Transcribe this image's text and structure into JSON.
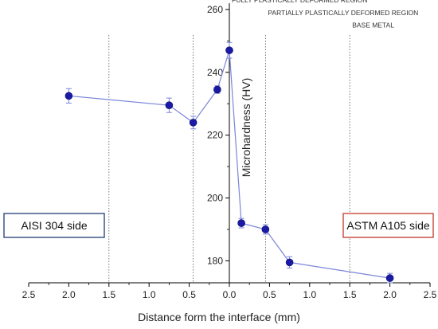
{
  "chart_data": {
    "type": "scatter",
    "xlabel": "Distance form the interface (mm)",
    "ylabel": "Microhardness (HV)",
    "x_ticks": [
      "2.5",
      "2.0",
      "1.5",
      "1.0",
      "0.5",
      "0.0",
      "0.5",
      "1.0",
      "1.5",
      "2.0",
      "2.5"
    ],
    "y_ticks": [
      "180",
      "200",
      "220",
      "240",
      "260"
    ],
    "xlim": [
      -2.5,
      2.5
    ],
    "ylim": [
      173,
      262
    ],
    "x_direction_note": "negative = AISI 304 side, positive = ASTM A105 side",
    "series": [
      {
        "color": "#1a1aa6",
        "line_color": "#7a86d8",
        "points": [
          {
            "x": -2.0,
            "y": 232.5,
            "err": 2.3
          },
          {
            "x": -0.75,
            "y": 229.5,
            "err": 2.3
          },
          {
            "x": -0.45,
            "y": 224.0,
            "err": 2.0
          },
          {
            "x": -0.15,
            "y": 234.5,
            "err": 1.2
          },
          {
            "x": 0.0,
            "y": 247.0,
            "err": 2.5
          },
          {
            "x": 0.15,
            "y": 192.0,
            "err": 1.5
          },
          {
            "x": 0.45,
            "y": 190.0,
            "err": 1.5
          },
          {
            "x": 0.75,
            "y": 179.5,
            "err": 1.8
          },
          {
            "x": 2.0,
            "y": 174.5,
            "err": 1.5
          }
        ]
      }
    ],
    "region_lines_x": [
      -1.5,
      -0.45,
      0.45,
      1.5
    ],
    "region_labels": [
      {
        "text": "FULLY PLASTICALLY DEFORMED REGION",
        "x": 0.0,
        "y": 263
      },
      {
        "text": "PARTIALLY PLASTICALLY DEFORMED REGION",
        "x": 0.45,
        "y": 259
      },
      {
        "text": "BASE METAL",
        "x": 1.5,
        "y": 255
      }
    ],
    "side_boxes": [
      {
        "text": "AISI 304 side",
        "border_color": "#1f3b73"
      },
      {
        "text": "ASTM A105 side",
        "border_color": "#c0392b"
      }
    ]
  }
}
